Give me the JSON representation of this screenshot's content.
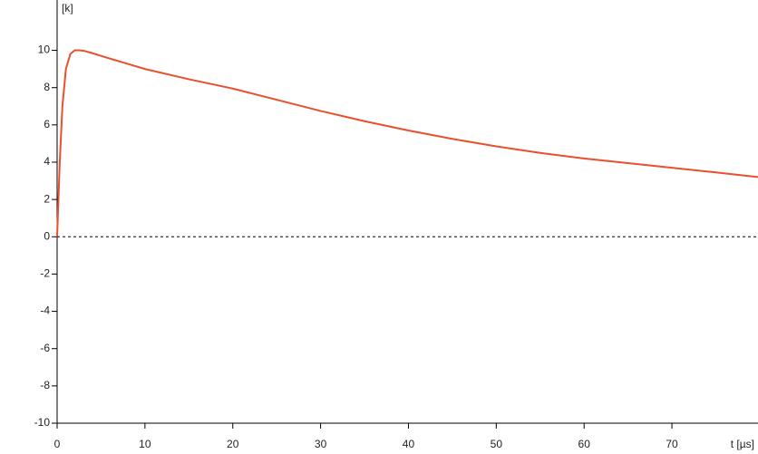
{
  "chart_data": {
    "type": "line",
    "xlabel": "t [µs]",
    "ylabel": "[k]",
    "x": [
      0,
      0.3,
      0.6,
      1,
      1.5,
      2,
      2.5,
      3,
      4,
      5,
      7.5,
      10,
      15,
      20,
      25,
      30,
      35,
      40,
      45,
      50,
      55,
      60,
      65,
      70,
      75,
      79.8
    ],
    "values": [
      0,
      4,
      7,
      9,
      9.8,
      10,
      10,
      9.98,
      9.85,
      9.7,
      9.35,
      9.0,
      8.45,
      7.95,
      7.35,
      6.75,
      6.2,
      5.7,
      5.25,
      4.85,
      4.5,
      4.2,
      3.95,
      3.7,
      3.45,
      3.2
    ],
    "color": "#e8502e",
    "xlim": [
      0,
      79.8
    ],
    "ylim": [
      -10,
      12.7
    ],
    "xticks": [
      0,
      10,
      20,
      30,
      40,
      50,
      60,
      70
    ],
    "yticks": [
      -10,
      -8,
      -6,
      -4,
      -2,
      0,
      2,
      4,
      6,
      8,
      10
    ],
    "zero_line": true
  }
}
